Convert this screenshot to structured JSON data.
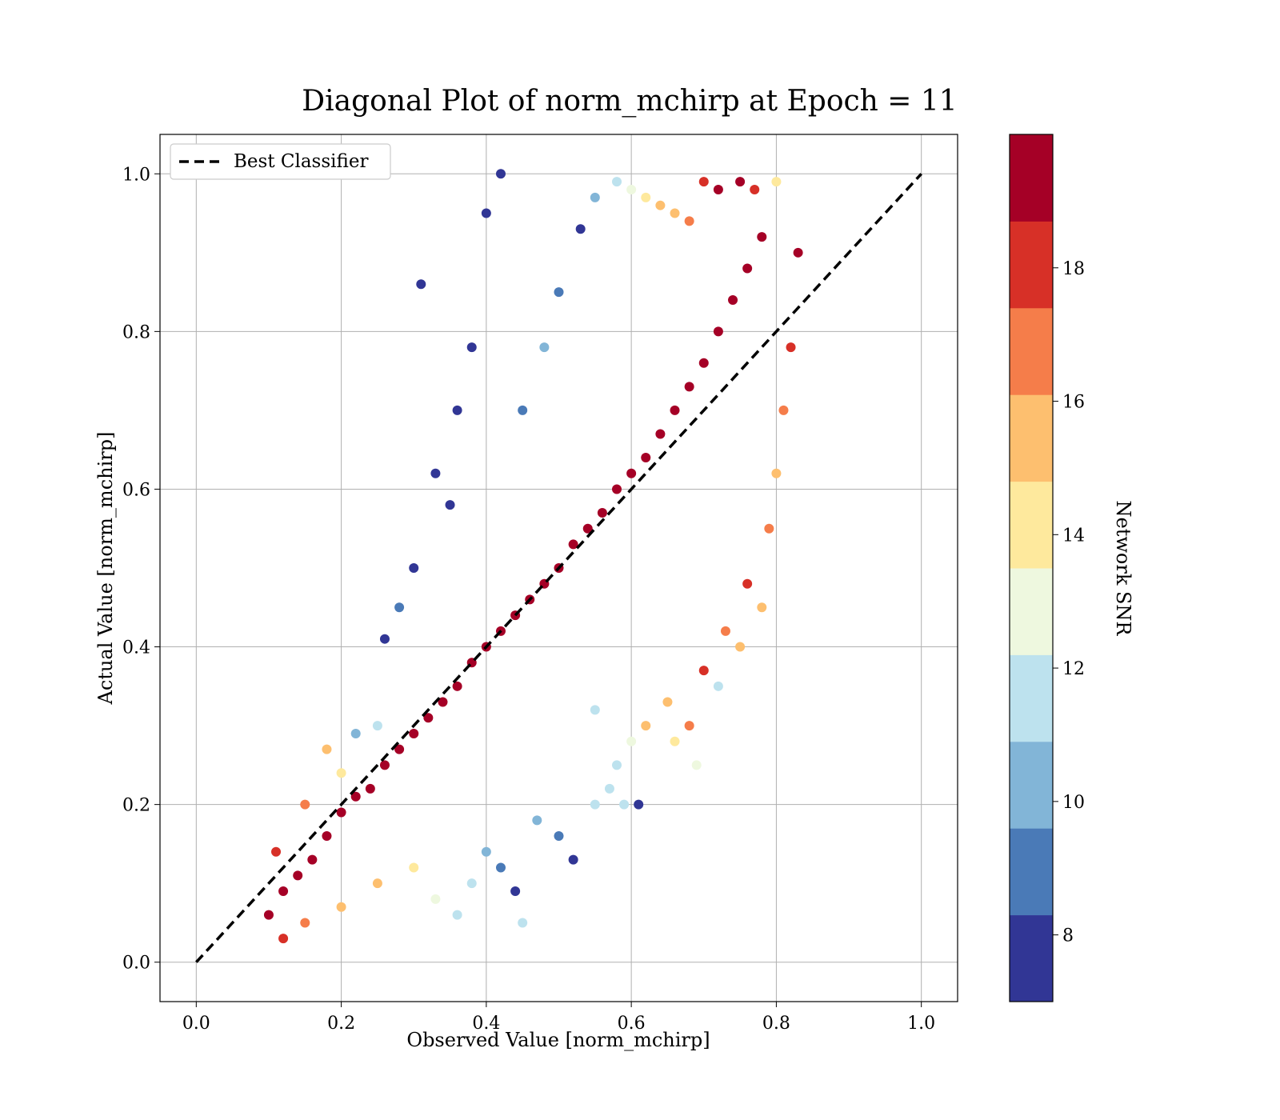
{
  "chart_data": {
    "type": "scatter",
    "title": "Diagonal Plot of norm_mchirp at Epoch = 11",
    "xlabel": "Observed Value [norm_mchirp]",
    "ylabel": "Actual Value [norm_mchirp]",
    "xlim": [
      -0.05,
      1.05
    ],
    "ylim": [
      -0.05,
      1.05
    ],
    "xticks": [
      "0.0",
      "0.2",
      "0.4",
      "0.6",
      "0.8",
      "1.0"
    ],
    "yticks": [
      "0.0",
      "0.2",
      "0.4",
      "0.6",
      "0.8",
      "1.0"
    ],
    "grid": true,
    "legend": {
      "position": "top-left",
      "entries": [
        "Best Classifier"
      ]
    },
    "reference_line": {
      "label": "Best Classifier",
      "x": [
        0.0,
        1.0
      ],
      "y": [
        0.0,
        1.0
      ],
      "style": "dashed",
      "color": "#000000"
    },
    "colorbar": {
      "label": "Network SNR",
      "range": [
        7,
        20
      ],
      "ticks": [
        "8",
        "10",
        "12",
        "14",
        "16",
        "18"
      ],
      "bins": [
        {
          "from": 7,
          "to": 8.3,
          "color": "#313695"
        },
        {
          "from": 8.3,
          "to": 9.6,
          "color": "#4a7ab7"
        },
        {
          "from": 9.6,
          "to": 10.9,
          "color": "#82b5d7"
        },
        {
          "from": 10.9,
          "to": 12.2,
          "color": "#bde2ee"
        },
        {
          "from": 12.2,
          "to": 13.5,
          "color": "#eef8df"
        },
        {
          "from": 13.5,
          "to": 14.8,
          "color": "#fee99d"
        },
        {
          "from": 14.8,
          "to": 16.1,
          "color": "#fdbf6f"
        },
        {
          "from": 16.1,
          "to": 17.4,
          "color": "#f57d4a"
        },
        {
          "from": 17.4,
          "to": 18.7,
          "color": "#d73027"
        },
        {
          "from": 18.7,
          "to": 20,
          "color": "#a50026"
        }
      ]
    },
    "series": [
      {
        "name": "",
        "color_by": "Network SNR",
        "points": [
          [
            0.1,
            0.06,
            19
          ],
          [
            0.12,
            0.09,
            19
          ],
          [
            0.14,
            0.11,
            19
          ],
          [
            0.16,
            0.13,
            19
          ],
          [
            0.18,
            0.16,
            19
          ],
          [
            0.2,
            0.19,
            19
          ],
          [
            0.22,
            0.21,
            19
          ],
          [
            0.24,
            0.22,
            19
          ],
          [
            0.26,
            0.25,
            19
          ],
          [
            0.28,
            0.27,
            19
          ],
          [
            0.3,
            0.29,
            19
          ],
          [
            0.32,
            0.31,
            19
          ],
          [
            0.34,
            0.33,
            19
          ],
          [
            0.36,
            0.35,
            19
          ],
          [
            0.38,
            0.38,
            19
          ],
          [
            0.4,
            0.4,
            19
          ],
          [
            0.42,
            0.42,
            19
          ],
          [
            0.44,
            0.44,
            19
          ],
          [
            0.46,
            0.46,
            19
          ],
          [
            0.48,
            0.48,
            19
          ],
          [
            0.5,
            0.5,
            19
          ],
          [
            0.52,
            0.53,
            19
          ],
          [
            0.54,
            0.55,
            19
          ],
          [
            0.56,
            0.57,
            19
          ],
          [
            0.58,
            0.6,
            19
          ],
          [
            0.6,
            0.62,
            19
          ],
          [
            0.62,
            0.64,
            19
          ],
          [
            0.64,
            0.67,
            19
          ],
          [
            0.66,
            0.7,
            19
          ],
          [
            0.68,
            0.73,
            19
          ],
          [
            0.7,
            0.76,
            19
          ],
          [
            0.72,
            0.8,
            19
          ],
          [
            0.74,
            0.84,
            19
          ],
          [
            0.76,
            0.88,
            19
          ],
          [
            0.78,
            0.92,
            19
          ],
          [
            0.12,
            0.03,
            18
          ],
          [
            0.15,
            0.05,
            17
          ],
          [
            0.2,
            0.07,
            16
          ],
          [
            0.25,
            0.1,
            15
          ],
          [
            0.3,
            0.12,
            14
          ],
          [
            0.33,
            0.08,
            13
          ],
          [
            0.36,
            0.06,
            12
          ],
          [
            0.38,
            0.1,
            11
          ],
          [
            0.4,
            0.14,
            10
          ],
          [
            0.42,
            0.12,
            9
          ],
          [
            0.44,
            0.09,
            8
          ],
          [
            0.45,
            0.05,
            11
          ],
          [
            0.47,
            0.18,
            10
          ],
          [
            0.5,
            0.16,
            9
          ],
          [
            0.52,
            0.13,
            8
          ],
          [
            0.55,
            0.2,
            12
          ],
          [
            0.58,
            0.25,
            11
          ],
          [
            0.6,
            0.28,
            13
          ],
          [
            0.62,
            0.3,
            15
          ],
          [
            0.65,
            0.33,
            16
          ],
          [
            0.68,
            0.3,
            17
          ],
          [
            0.7,
            0.37,
            18
          ],
          [
            0.73,
            0.42,
            17
          ],
          [
            0.76,
            0.48,
            18
          ],
          [
            0.79,
            0.55,
            17
          ],
          [
            0.8,
            0.62,
            16
          ],
          [
            0.81,
            0.7,
            17
          ],
          [
            0.82,
            0.78,
            18
          ],
          [
            0.83,
            0.9,
            19
          ],
          [
            0.35,
            0.58,
            8
          ],
          [
            0.31,
            0.86,
            8
          ],
          [
            0.4,
            0.95,
            8
          ],
          [
            0.42,
            1.0,
            8
          ],
          [
            0.38,
            0.78,
            8
          ],
          [
            0.36,
            0.7,
            8
          ],
          [
            0.33,
            0.62,
            8
          ],
          [
            0.3,
            0.5,
            8
          ],
          [
            0.28,
            0.45,
            9
          ],
          [
            0.26,
            0.41,
            8
          ],
          [
            0.45,
            0.7,
            9
          ],
          [
            0.48,
            0.78,
            10
          ],
          [
            0.5,
            0.85,
            9
          ],
          [
            0.53,
            0.93,
            8
          ],
          [
            0.55,
            0.97,
            10
          ],
          [
            0.58,
            0.99,
            11
          ],
          [
            0.6,
            0.98,
            13
          ],
          [
            0.62,
            0.97,
            14
          ],
          [
            0.64,
            0.96,
            15
          ],
          [
            0.66,
            0.95,
            16
          ],
          [
            0.68,
            0.94,
            17
          ],
          [
            0.7,
            0.99,
            18
          ],
          [
            0.72,
            0.98,
            19
          ],
          [
            0.75,
            0.99,
            19
          ],
          [
            0.77,
            0.98,
            18
          ],
          [
            0.8,
            0.99,
            14
          ],
          [
            0.55,
            0.32,
            11
          ],
          [
            0.57,
            0.22,
            12
          ],
          [
            0.59,
            0.2,
            11
          ],
          [
            0.61,
            0.2,
            8
          ],
          [
            0.66,
            0.28,
            14
          ],
          [
            0.69,
            0.25,
            13
          ],
          [
            0.72,
            0.35,
            12
          ],
          [
            0.75,
            0.4,
            15
          ],
          [
            0.78,
            0.45,
            16
          ],
          [
            0.25,
            0.3,
            12
          ],
          [
            0.22,
            0.29,
            10
          ],
          [
            0.2,
            0.24,
            14
          ],
          [
            0.18,
            0.27,
            15
          ],
          [
            0.15,
            0.2,
            17
          ],
          [
            0.11,
            0.14,
            18
          ]
        ]
      }
    ]
  }
}
